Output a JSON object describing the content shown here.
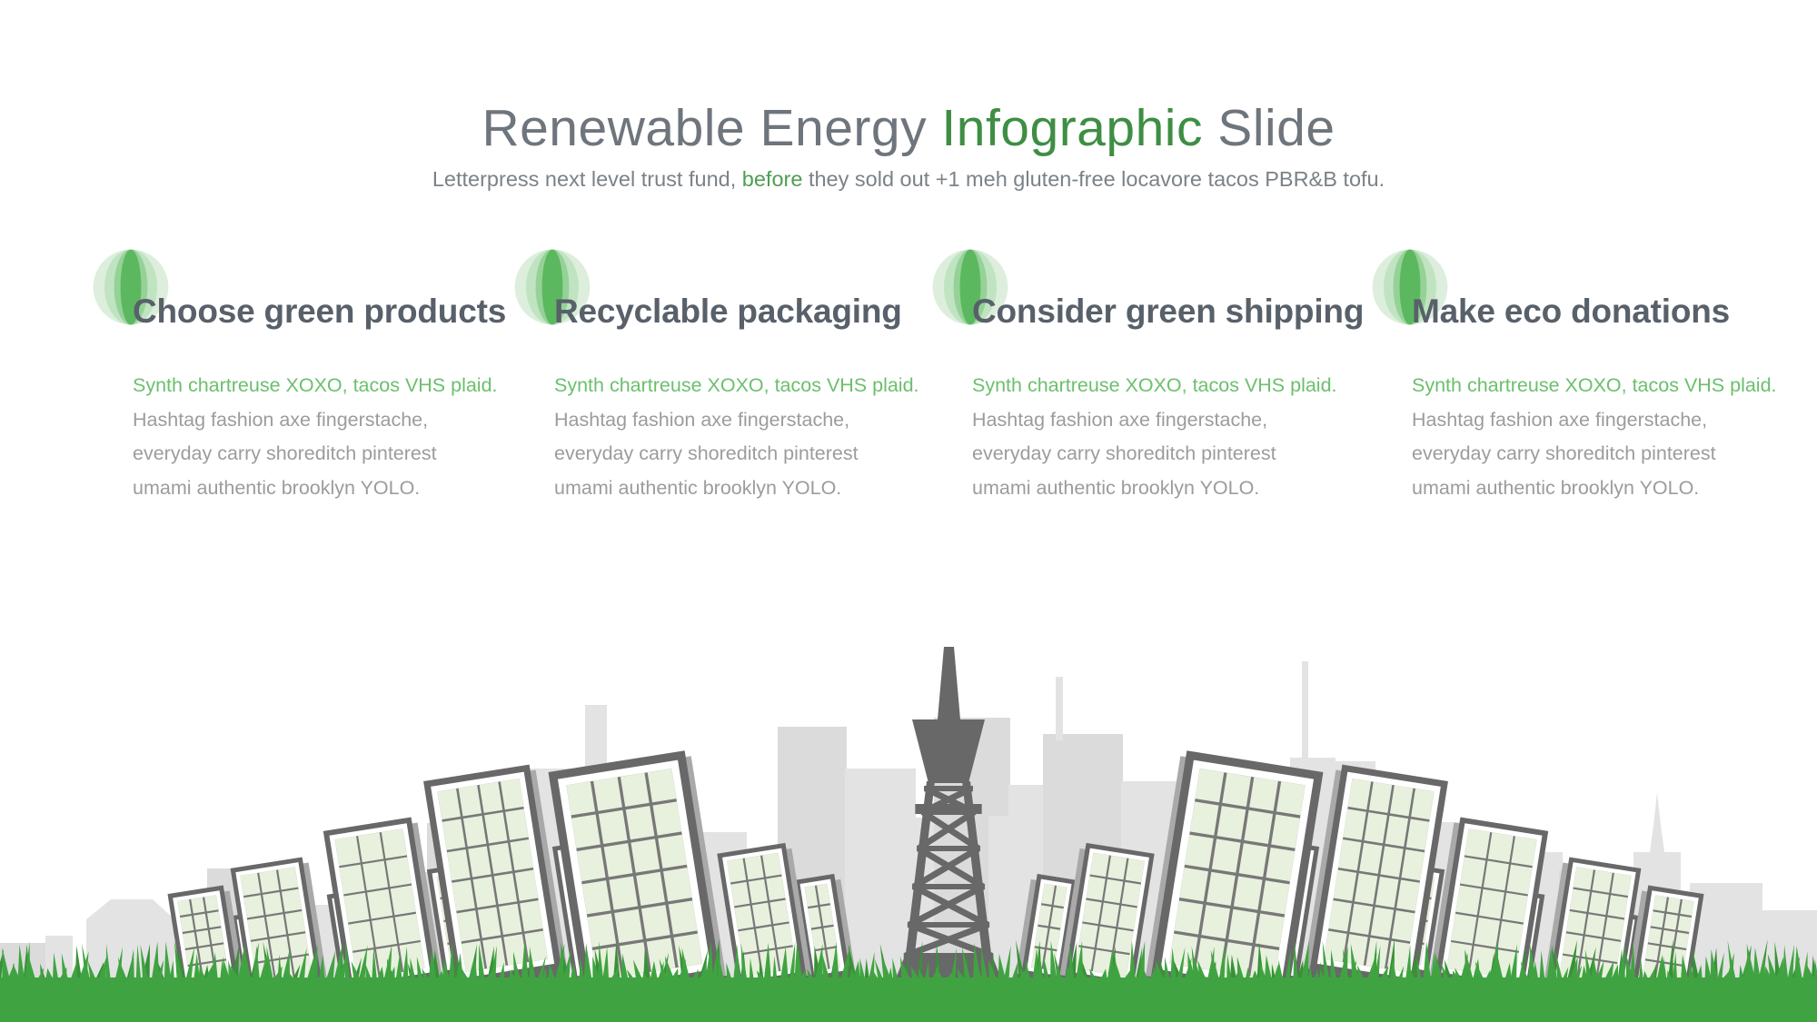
{
  "slide": {
    "title": {
      "part1": "Renewable Energy",
      "highlight": "Infographic",
      "part2": "Slide"
    },
    "subtitle": {
      "part1": "Letterpress next level trust fund,",
      "highlight": "before",
      "part2": "they sold out +1 meh gluten-free locavore tacos PBR&B tofu."
    }
  },
  "columns": [
    {
      "heading": "Choose green products",
      "body": {
        "lead": "Synth chartreuse XOXO, tacos VHS plaid.",
        "lines": [
          "Hashtag fashion axe fingerstache,",
          "everyday carry shoreditch pinterest",
          "umami authentic brooklyn YOLO."
        ]
      }
    },
    {
      "heading": "Recyclable packaging",
      "body": {
        "lead": "Synth chartreuse XOXO, tacos VHS plaid.",
        "lines": [
          "Hashtag fashion axe fingerstache,",
          "everyday carry shoreditch pinterest",
          "umami authentic brooklyn YOLO."
        ]
      }
    },
    {
      "heading": "Consider green shipping",
      "body": {
        "lead": "Synth chartreuse XOXO, tacos VHS plaid.",
        "lines": [
          "Hashtag fashion axe fingerstache,",
          "everyday carry shoreditch pinterest",
          "umami authentic brooklyn YOLO."
        ]
      }
    },
    {
      "heading": "Make eco donations",
      "body": {
        "lead": "Synth chartreuse XOXO, tacos VHS plaid.",
        "lines": [
          "Hashtag fashion axe fingerstache,",
          "everyday carry shoreditch pinterest",
          "umami authentic brooklyn YOLO."
        ]
      }
    }
  ],
  "colors": {
    "accent_green": "#3e8e43",
    "body_green": "#6cbf6d",
    "structure_gray": "#686868",
    "panel_shadow": "#a9a9a9",
    "panel_cell": "#e8f1dd",
    "cell_line": "#787878",
    "skyline_gray": "#e3e3e3",
    "skyline_gray_alt": "#dbdbdb",
    "grass_green": "#40a341",
    "grass_dark": "#389138"
  }
}
